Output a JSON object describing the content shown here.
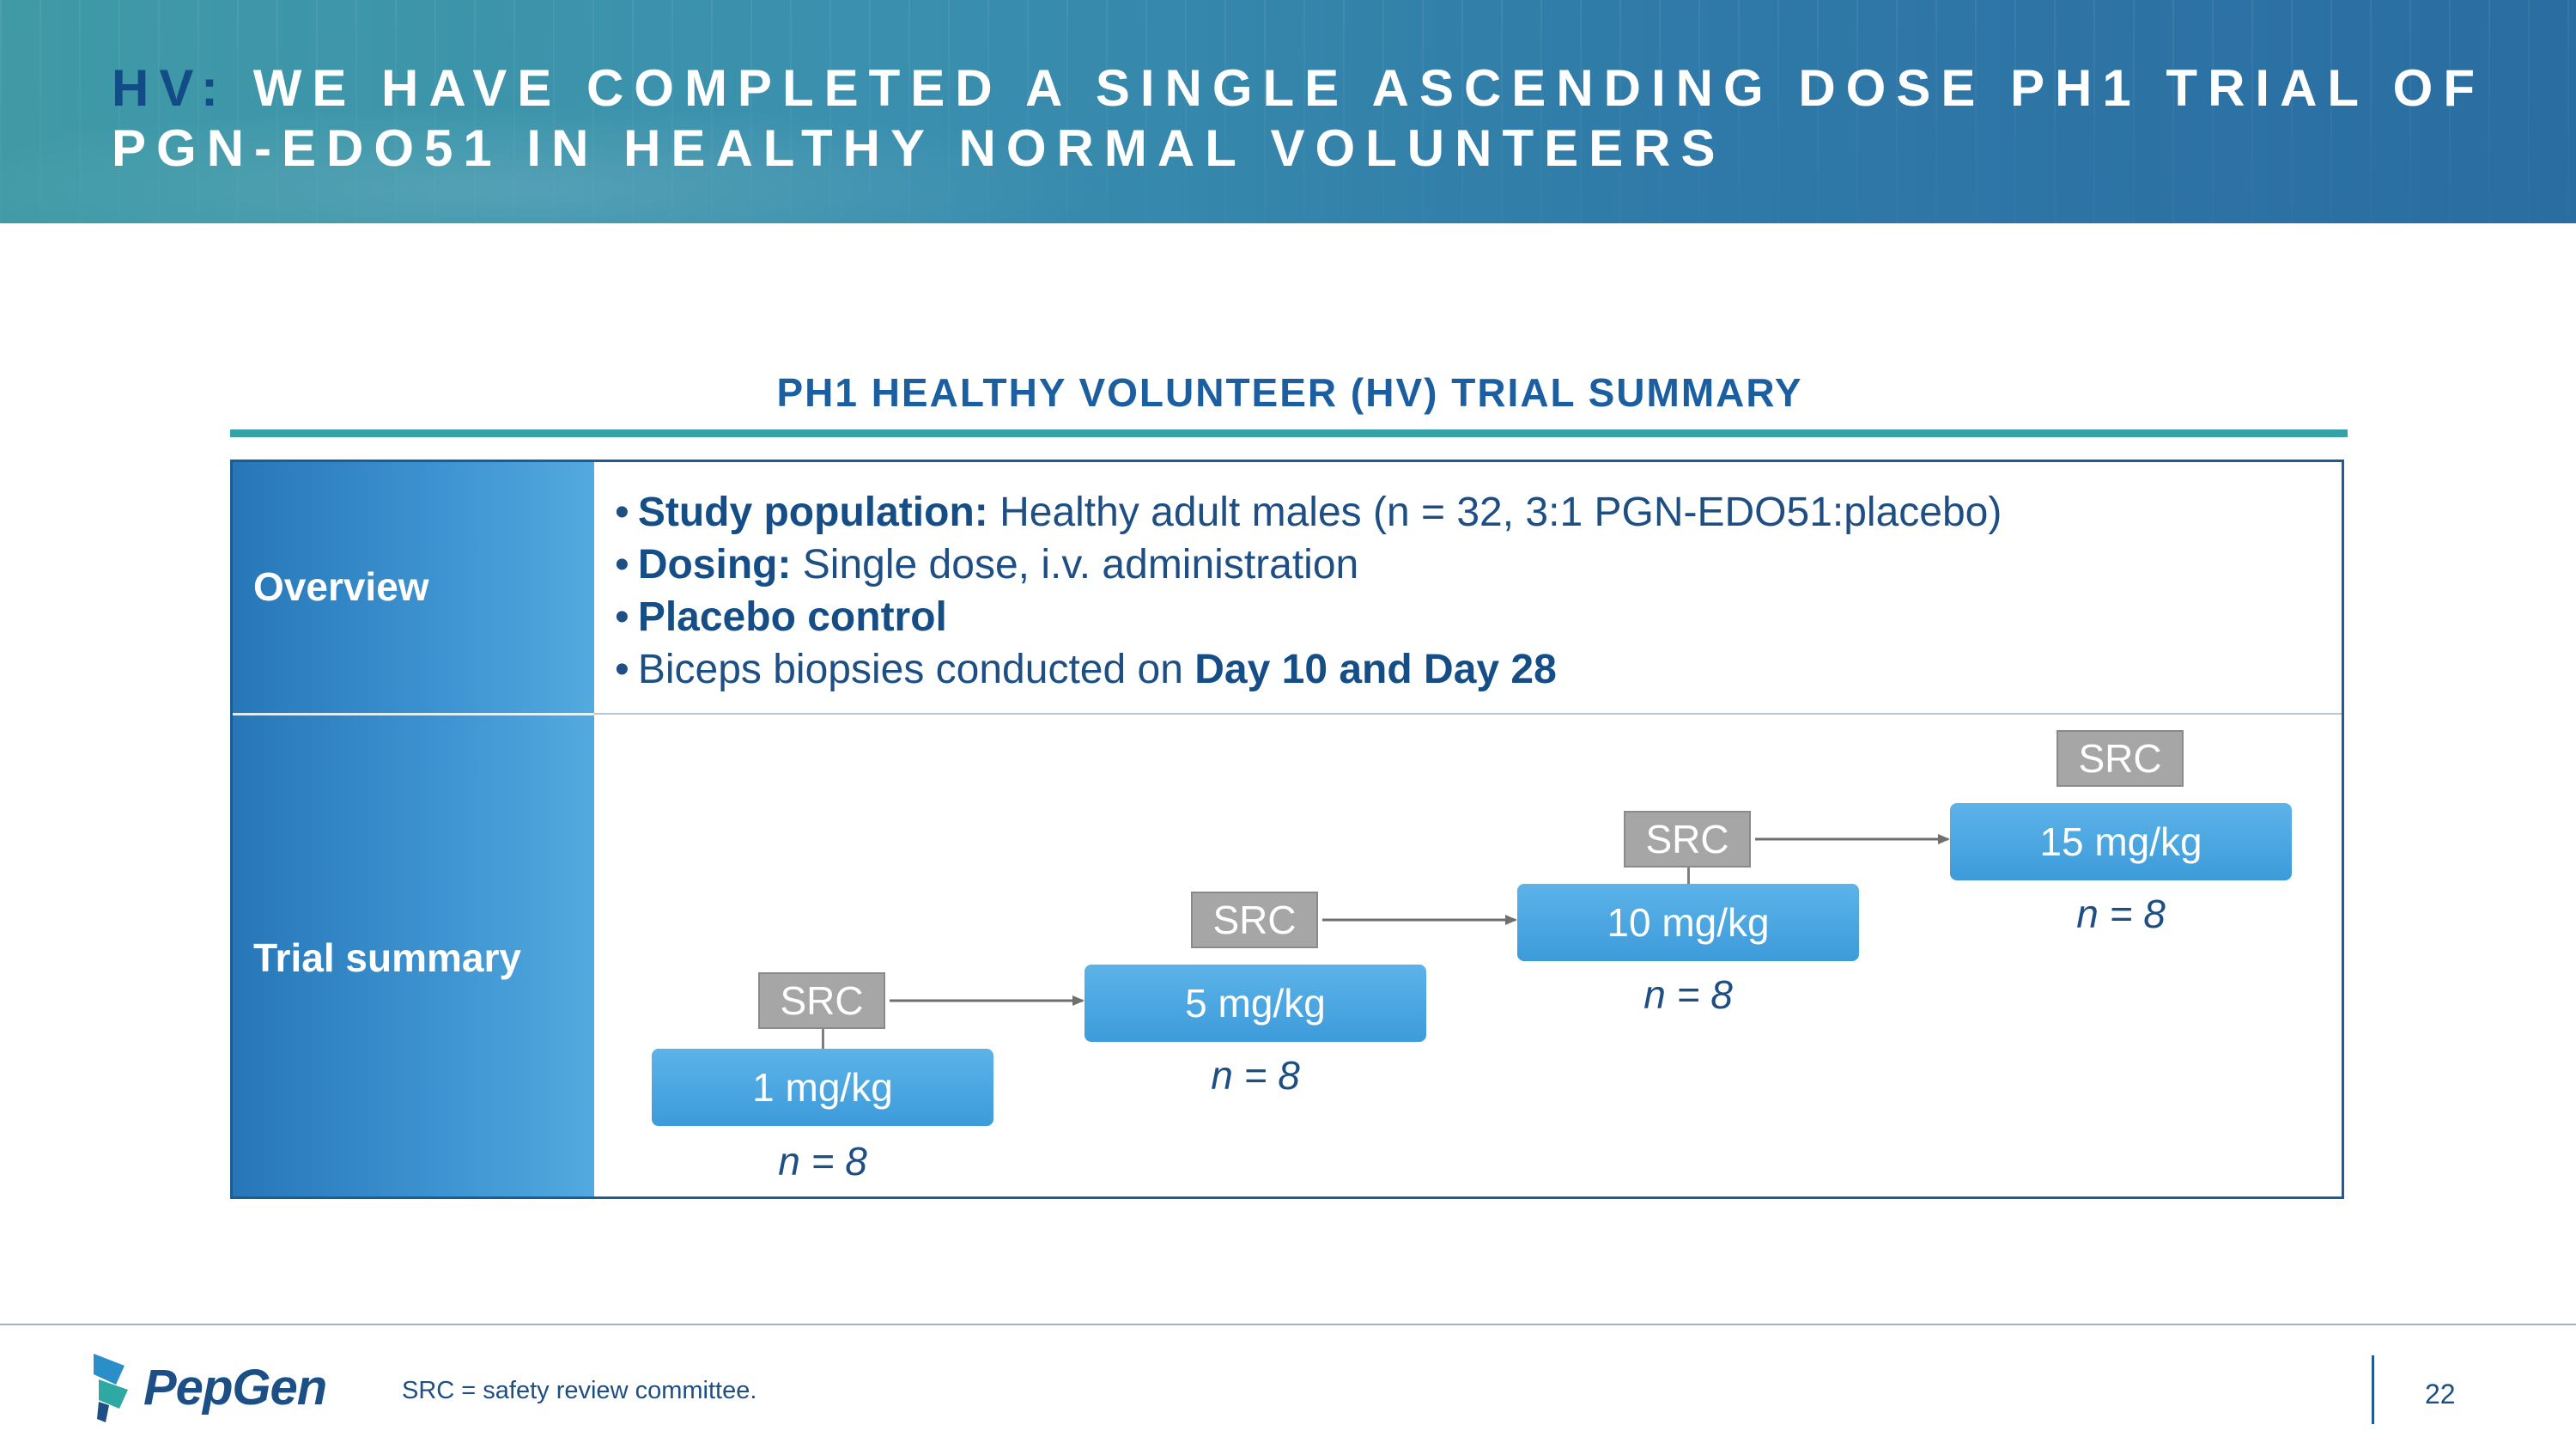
{
  "header": {
    "title_prefix": "HV:",
    "title_rest": "WE HAVE COMPLETED A SINGLE ASCENDING DOSE PH1 TRIAL OF PGN-EDO51 IN HEALTHY NORMAL VOLUNTEERS"
  },
  "section": {
    "heading": "PH1 HEALTHY VOLUNTEER (HV) TRIAL SUMMARY"
  },
  "table": {
    "overview_label": "Overview",
    "trial_summary_label": "Trial summary",
    "overview_items": [
      {
        "bullet": "•",
        "bold": "Study population:",
        "text": " Healthy adult males (n = 32, 3:1 PGN-EDO51:placebo)"
      },
      {
        "bullet": "•",
        "bold": "Dosing:",
        "text": " Single dose, i.v. administration"
      },
      {
        "bullet": "•",
        "bold": "Placebo control",
        "text": ""
      },
      {
        "bullet": "•",
        "text_before": "Biceps biopsies conducted on ",
        "bold": "Day 10 and Day 28"
      }
    ]
  },
  "diagram": {
    "steps": [
      {
        "src_label": "SRC",
        "dose": "1 mg/kg",
        "n": "n = 8"
      },
      {
        "src_label": "SRC",
        "dose": "5 mg/kg",
        "n": "n = 8"
      },
      {
        "src_label": "SRC",
        "dose": "10 mg/kg",
        "n": "n = 8"
      },
      {
        "src_label": "SRC",
        "dose": "15 mg/kg",
        "n": "n = 8"
      }
    ]
  },
  "footer": {
    "logo_text": "PepGen",
    "footnote": "SRC = safety review committee.",
    "page_number": "22"
  },
  "colors": {
    "title_prefix": "#124c86",
    "accent_rule": "#35a2a8",
    "dose_box": "#3d9bda",
    "src_box": "#a6a6a6",
    "text_blue": "#1d4e84"
  }
}
